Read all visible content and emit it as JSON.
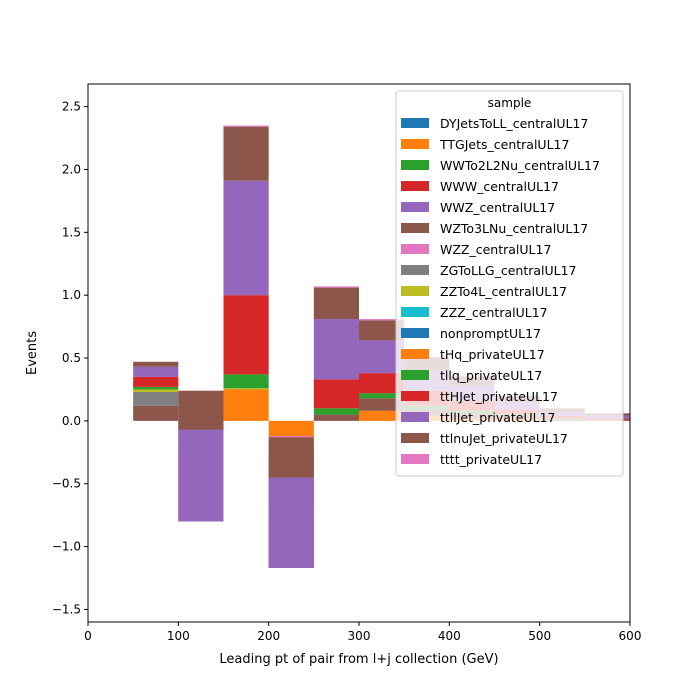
{
  "chart_data": {
    "type": "bar",
    "stacked": true,
    "histogram": true,
    "xlabel": "Leading pt of pair from l+j collection (GeV)",
    "ylabel": "Events",
    "xlim": [
      0,
      600
    ],
    "ylim": [
      -1.6,
      2.68
    ],
    "x_ticks": [
      0,
      100,
      200,
      300,
      400,
      500,
      600
    ],
    "y_ticks": [
      -1.5,
      -1.0,
      -0.5,
      0.0,
      0.5,
      1.0,
      1.5,
      2.0,
      2.5
    ],
    "bin_edges": [
      50,
      100,
      150,
      200,
      250,
      300,
      350,
      400,
      450,
      500,
      550,
      600
    ],
    "grid": false,
    "legend": {
      "title": "sample",
      "placement": "top-right"
    },
    "series": [
      {
        "name": "DYJetsToLL_centralUL17",
        "color": "#1f77b4",
        "values": [
          0,
          0,
          0,
          0,
          0,
          0,
          0,
          0,
          0,
          0,
          0
        ]
      },
      {
        "name": "TTGJets_centralUL17",
        "color": "#ff7f0e",
        "values": [
          0,
          0,
          0.25,
          -0.25,
          0,
          0.08,
          0.04,
          0.02,
          0.02,
          0,
          0
        ]
      },
      {
        "name": "WWTo2L2Nu_centralUL17",
        "color": "#2ca02c",
        "values": [
          0,
          0,
          0,
          0,
          0,
          0,
          0,
          0,
          0,
          0,
          0
        ]
      },
      {
        "name": "WWW_centralUL17",
        "color": "#d62728",
        "values": [
          0,
          0,
          0,
          0,
          0,
          0,
          0,
          0,
          0,
          0,
          0
        ]
      },
      {
        "name": "WWZ_centralUL17",
        "color": "#9467bd",
        "values": [
          0,
          0,
          0,
          0,
          0,
          0,
          0,
          0,
          0,
          0,
          0
        ]
      },
      {
        "name": "WZTo3LNu_centralUL17",
        "color": "#8c564b",
        "values": [
          0.12,
          -0.07,
          0,
          -0.44,
          0.05,
          0.1,
          0.05,
          0.04,
          0.02,
          0.01,
          0.01
        ]
      },
      {
        "name": "WZZ_centralUL17",
        "color": "#e377c2",
        "values": [
          0,
          0,
          0,
          0,
          0,
          0,
          0,
          0,
          0,
          0,
          0
        ]
      },
      {
        "name": "ZGToLLG_centralUL17",
        "color": "#7f7f7f",
        "values": [
          0.11,
          -0.06,
          0,
          0,
          0,
          0,
          0,
          0,
          0,
          0,
          0
        ]
      },
      {
        "name": "ZZTo4L_centralUL17",
        "color": "#bcbd22",
        "values": [
          0.02,
          0,
          0.01,
          0,
          0,
          0,
          0,
          0,
          0,
          0,
          0
        ]
      },
      {
        "name": "ZZZ_centralUL17",
        "color": "#17becf",
        "values": [
          0,
          0,
          0,
          0,
          0,
          0,
          0,
          0,
          0,
          0,
          0
        ]
      },
      {
        "name": "nonpromptUL17",
        "color": "#1f77b4",
        "values": [
          0,
          0,
          0,
          0,
          0,
          0,
          0,
          0,
          0,
          0,
          0
        ]
      },
      {
        "name": "tHq_privateUL17",
        "color": "#ff7f0e",
        "values": [
          0,
          0,
          0,
          0,
          0,
          0,
          0,
          0,
          0,
          0,
          0
        ]
      },
      {
        "name": "tllq_privateUL17",
        "color": "#2ca02c",
        "values": [
          0.02,
          -0.1,
          0.11,
          -0.08,
          0.05,
          0.04,
          0.03,
          0.02,
          0.01,
          0.01,
          0
        ]
      },
      {
        "name": "ttHJet_privateUL17",
        "color": "#d62728",
        "values": [
          0.08,
          -0.57,
          0.63,
          -0.4,
          0.23,
          0.16,
          0.12,
          0.08,
          0.04,
          0.02,
          0.01
        ]
      },
      {
        "name": "ttllJet_privateUL17",
        "color": "#9467bd",
        "values": [
          0.08,
          0.73,
          0.91,
          0.72,
          0.48,
          0.26,
          0.16,
          0.12,
          0.06,
          0.03,
          0.02
        ]
      },
      {
        "name": "ttlnuJet_privateUL17",
        "color": "#8c564b",
        "values": [
          0.04,
          0.31,
          0.43,
          0.32,
          0.25,
          0.16,
          0.1,
          0.07,
          0.05,
          0.03,
          0.02
        ]
      },
      {
        "name": "tttt_privateUL17",
        "color": "#e377c2",
        "values": [
          0,
          0,
          0.01,
          0.01,
          0.01,
          0.01,
          0.01,
          0.01,
          0,
          0,
          0
        ]
      }
    ]
  }
}
